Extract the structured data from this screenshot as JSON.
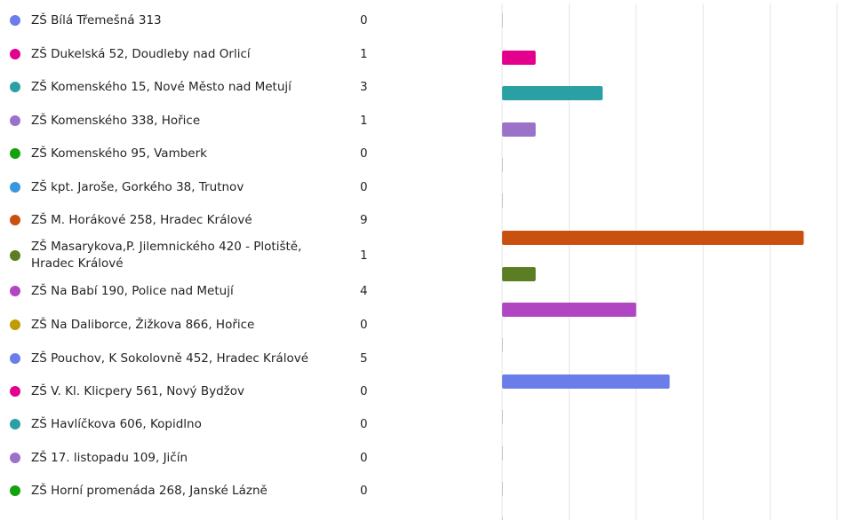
{
  "chart_data": {
    "type": "bar",
    "orientation": "horizontal",
    "grid": true,
    "xlim": [
      0,
      10
    ],
    "categories": [
      "ZŠ Bílá Třemešná 313",
      "ZŠ Dukelská 52, Doudleby nad Orlicí",
      "ZŠ Komenského 15, Nové Město nad Metují",
      "ZŠ Komenského 338, Hořice",
      "ZŠ Komenského 95, Vamberk",
      "ZŠ kpt. Jaroše, Gorkého 38, Trutnov",
      "ZŠ M. Horákové 258, Hradec Králové",
      "ZŠ Masarykova,P. Jilemnického 420 - Plotiště, Hradec Králové",
      "ZŠ Na Babí 190, Police nad Metují",
      "ZŠ Na Daliborce, Žižkova 866, Hořice",
      "ZŠ Pouchov, K Sokolovně 452, Hradec Králové",
      "ZŠ V. Kl. Klicpery 561, Nový Bydžov",
      "ZŠ Havlíčkova 606, Kopidlno",
      "ZŠ 17. listopadu 109, Jičín",
      "ZŠ Horní promenáda 268, Janské Lázně"
    ],
    "values": [
      0,
      1,
      3,
      1,
      0,
      0,
      9,
      1,
      4,
      0,
      5,
      0,
      0,
      0,
      0
    ],
    "value_labels": [
      "0",
      "1",
      "3",
      "1",
      "0",
      "0",
      "9",
      "1",
      "4",
      "0",
      "5",
      "0",
      "0",
      "0",
      "0"
    ],
    "colors": [
      "#6b7de8",
      "#e3008c",
      "#2aa0a4",
      "#9a73c8",
      "#13a10e",
      "#3a96dd",
      "#ca5010",
      "#5c7e23",
      "#b146c2",
      "#c19c00",
      "#6b7de8",
      "#e3008c",
      "#2aa0a4",
      "#9a73c8",
      "#13a10e"
    ],
    "gridline_color": "#e6e6e6"
  }
}
